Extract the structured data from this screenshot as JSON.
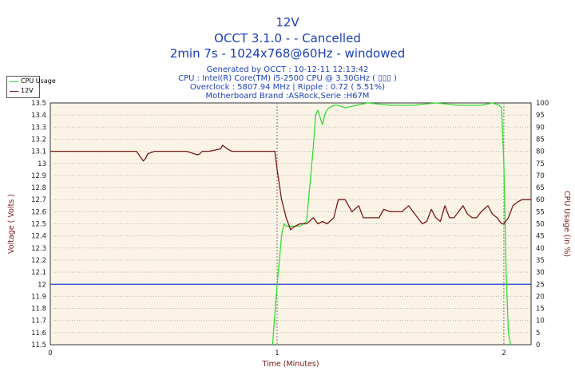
{
  "header": {
    "title": "12V",
    "line2": "OCCT 3.1.0 -  - Cancelled",
    "line3": "2min 7s - 1024x768@60Hz - windowed",
    "info": [
      "Generated by OCCT : 10-12-11 12:13:42",
      "CPU : Intel(R) Core(TM) i5-2500 CPU @ 3.30GHz ( ▯▯▯ )",
      "Overclock : 5807.94 MHz | Ripple : 0.72 ( 5.51%)",
      "Motherboard Brand :ASRock,Serie :H67M"
    ]
  },
  "colors": {
    "title": "#1a3fb8",
    "voltage": "#7a1616",
    "cpu": "#33dd33",
    "reference": "#1f3fd8",
    "plot_bg": "#fbf4e6",
    "grid": "#b7b7b7",
    "axis_label": "#7a1616"
  },
  "chart_data": {
    "type": "line",
    "xlabel": "Time (Minutes)",
    "ylabel": "Voltage ( Volts )",
    "y2label": "CPU Usage (in %)",
    "xlim": [
      0,
      2.12
    ],
    "ylim": [
      11.5,
      13.5
    ],
    "y2lim": [
      0,
      100
    ],
    "x_ticks": [
      "0",
      "1",
      "2"
    ],
    "y_ticks": [
      "11.5",
      "11.6",
      "11.7",
      "11.8",
      "11.9",
      "12",
      "12.1",
      "12.2",
      "12.3",
      "12.4",
      "12.5",
      "12.6",
      "12.7",
      "12.8",
      "12.9",
      "13",
      "13.1",
      "13.2",
      "13.3",
      "13.4",
      "13.5"
    ],
    "y2_ticks": [
      "0",
      "5",
      "10",
      "15",
      "20",
      "25",
      "30",
      "35",
      "40",
      "45",
      "50",
      "55",
      "60",
      "65",
      "70",
      "75",
      "80",
      "85",
      "90",
      "95",
      "100"
    ],
    "grid": true,
    "legend": "top-left",
    "reference_line": {
      "axis": "y",
      "value": 12
    },
    "series": [
      {
        "name": "CPU Usage",
        "axis": "right",
        "x": [
          0.98,
          1.0,
          1.02,
          1.03,
          1.04,
          1.06,
          1.1,
          1.13,
          1.16,
          1.17,
          1.18,
          1.19,
          1.2,
          1.21,
          1.22,
          1.23,
          1.25,
          1.27,
          1.3,
          1.35,
          1.4,
          1.5,
          1.6,
          1.7,
          1.8,
          1.9,
          1.95,
          1.98,
          1.99,
          2.0,
          2.01,
          2.02,
          2.03
        ],
        "values": [
          0,
          25,
          45,
          50,
          49,
          49,
          49,
          51,
          82,
          95,
          97,
          94,
          91,
          95,
          97,
          98,
          99,
          99,
          98,
          99,
          100,
          99,
          99,
          100,
          99,
          99,
          100,
          99,
          98,
          75,
          30,
          5,
          0
        ]
      },
      {
        "name": "12V",
        "axis": "left",
        "x": [
          0,
          0.38,
          0.41,
          0.42,
          0.43,
          0.46,
          0.6,
          0.65,
          0.66,
          0.67,
          0.7,
          0.75,
          0.76,
          0.78,
          0.8,
          0.95,
          0.99,
          1.0,
          1.02,
          1.04,
          1.06,
          1.07,
          1.1,
          1.13,
          1.16,
          1.18,
          1.2,
          1.22,
          1.25,
          1.27,
          1.3,
          1.33,
          1.36,
          1.38,
          1.4,
          1.45,
          1.47,
          1.5,
          1.52,
          1.55,
          1.58,
          1.6,
          1.62,
          1.64,
          1.66,
          1.68,
          1.7,
          1.72,
          1.74,
          1.76,
          1.78,
          1.8,
          1.82,
          1.84,
          1.86,
          1.88,
          1.9,
          1.93,
          1.95,
          1.97,
          1.99,
          2.0,
          2.02,
          2.04,
          2.06,
          2.08,
          2.12
        ],
        "values": [
          13.1,
          13.1,
          13.02,
          13.04,
          13.08,
          13.1,
          13.1,
          13.07,
          13.08,
          13.1,
          13.1,
          13.12,
          13.15,
          13.12,
          13.1,
          13.1,
          13.1,
          12.95,
          12.7,
          12.55,
          12.45,
          12.47,
          12.5,
          12.5,
          12.55,
          12.5,
          12.52,
          12.5,
          12.55,
          12.7,
          12.7,
          12.6,
          12.65,
          12.55,
          12.55,
          12.55,
          12.62,
          12.6,
          12.6,
          12.6,
          12.65,
          12.6,
          12.55,
          12.5,
          12.52,
          12.62,
          12.55,
          12.52,
          12.65,
          12.55,
          12.55,
          12.6,
          12.65,
          12.58,
          12.55,
          12.55,
          12.6,
          12.65,
          12.58,
          12.55,
          12.5,
          12.5,
          12.55,
          12.65,
          12.68,
          12.7,
          12.7
        ]
      }
    ]
  }
}
